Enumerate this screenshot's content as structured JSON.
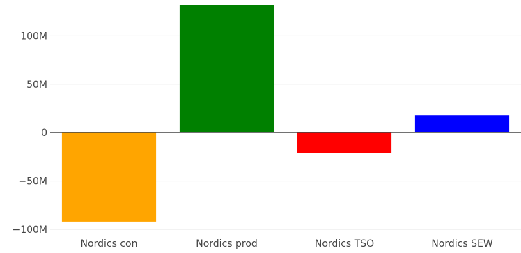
{
  "chart_data": {
    "type": "bar",
    "categories": [
      "Nordics con",
      "Nordics prod",
      "Nordics TSO",
      "Nordics SEW"
    ],
    "values": [
      -92000000,
      132000000,
      -21000000,
      18000000
    ],
    "colors": [
      "#FFA500",
      "#008000",
      "#FF0000",
      "#0000FF"
    ],
    "ylim": [
      -100000000,
      132000000
    ],
    "yticks": [
      {
        "value": -100000000,
        "label": "−100M"
      },
      {
        "value": -50000000,
        "label": "−50M"
      },
      {
        "value": 0,
        "label": "0"
      },
      {
        "value": 50000000,
        "label": "50M"
      },
      {
        "value": 100000000,
        "label": "100M"
      }
    ],
    "grid": true,
    "legend": false
  }
}
